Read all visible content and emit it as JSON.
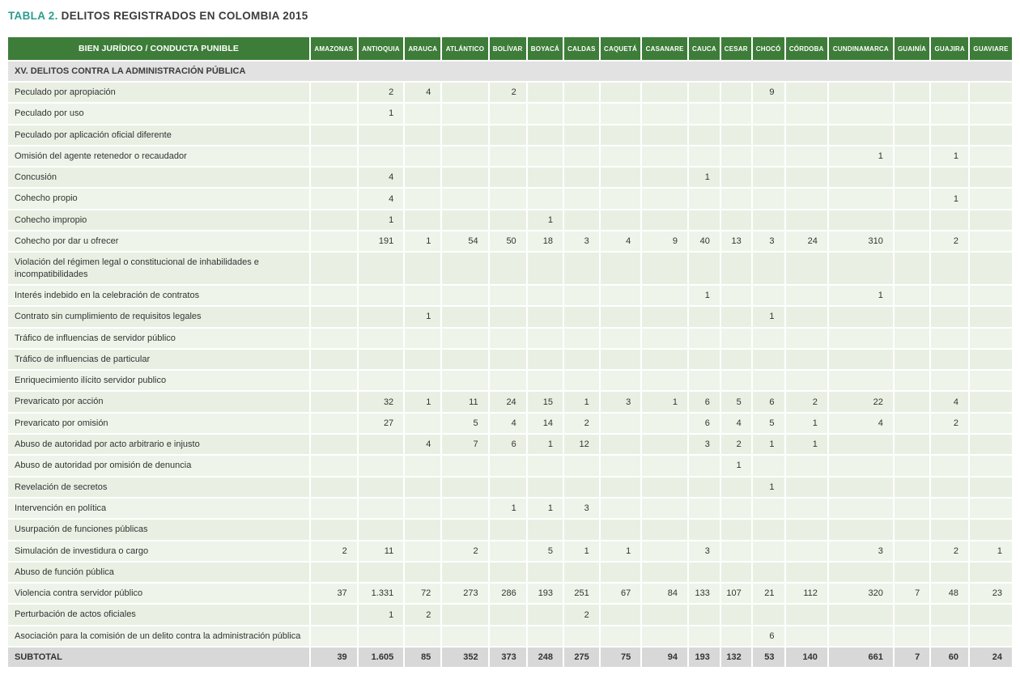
{
  "title": {
    "prefix": "TABLA 2.",
    "text": "DELITOS REGISTRADOS EN COLOMBIA 2015"
  },
  "colors": {
    "header_green": "#3e7d39",
    "title_teal": "#2a9d8f",
    "row_green": "#e9f0e3",
    "row_green_alt": "#eef4e9",
    "section_gray": "#e2e2e2",
    "subtotal_gray": "#d8d8d8"
  },
  "table": {
    "header_label": "BIEN JURÍDICO / CONDUCTA PUNIBLE",
    "columns": [
      "AMAZONAS",
      "ANTIOQUIA",
      "ARAUCA",
      "ATLÁNTICO",
      "BOLÍVAR",
      "BOYACÁ",
      "CALDAS",
      "CAQUETÁ",
      "CASANARE",
      "CAUCA",
      "CESAR",
      "CHOCÓ",
      "CÓRDOBA",
      "CUNDINAMARCA",
      "GUAINÍA",
      "GUAJIRA",
      "GUAVIARE"
    ],
    "section": "XV. DELITOS CONTRA LA ADMINISTRACIÓN PÚBLICA",
    "rows": [
      {
        "label": "Peculado por apropiación",
        "values": [
          "",
          "2",
          "4",
          "",
          "2",
          "",
          "",
          "",
          "",
          "",
          "",
          "9",
          "",
          "",
          "",
          "",
          ""
        ]
      },
      {
        "label": "Peculado por uso",
        "values": [
          "",
          "1",
          "",
          "",
          "",
          "",
          "",
          "",
          "",
          "",
          "",
          "",
          "",
          "",
          "",
          "",
          ""
        ]
      },
      {
        "label": "Peculado por aplicación oficial diferente",
        "values": [
          "",
          "",
          "",
          "",
          "",
          "",
          "",
          "",
          "",
          "",
          "",
          "",
          "",
          "",
          "",
          "",
          ""
        ]
      },
      {
        "label": "Omisión del agente retenedor o recaudador",
        "values": [
          "",
          "",
          "",
          "",
          "",
          "",
          "",
          "",
          "",
          "",
          "",
          "",
          "",
          "1",
          "",
          "1",
          ""
        ]
      },
      {
        "label": "Concusión",
        "values": [
          "",
          "4",
          "",
          "",
          "",
          "",
          "",
          "",
          "",
          "1",
          "",
          "",
          "",
          "",
          "",
          "",
          ""
        ]
      },
      {
        "label": "Cohecho propio",
        "values": [
          "",
          "4",
          "",
          "",
          "",
          "",
          "",
          "",
          "",
          "",
          "",
          "",
          "",
          "",
          "",
          "1",
          ""
        ]
      },
      {
        "label": "Cohecho impropio",
        "values": [
          "",
          "1",
          "",
          "",
          "",
          "1",
          "",
          "",
          "",
          "",
          "",
          "",
          "",
          "",
          "",
          "",
          ""
        ]
      },
      {
        "label": "Cohecho por dar u ofrecer",
        "values": [
          "",
          "191",
          "1",
          "54",
          "50",
          "18",
          "3",
          "4",
          "9",
          "40",
          "13",
          "3",
          "24",
          "310",
          "",
          "2",
          ""
        ]
      },
      {
        "label": "Violación del régimen legal o constitucional de inhabilidades e incompatibilidades",
        "values": [
          "",
          "",
          "",
          "",
          "",
          "",
          "",
          "",
          "",
          "",
          "",
          "",
          "",
          "",
          "",
          "",
          ""
        ]
      },
      {
        "label": "Interés indebido en la celebración de contratos",
        "values": [
          "",
          "",
          "",
          "",
          "",
          "",
          "",
          "",
          "",
          "1",
          "",
          "",
          "",
          "1",
          "",
          "",
          ""
        ]
      },
      {
        "label": "Contrato sin cumplimiento de requisitos legales",
        "values": [
          "",
          "",
          "1",
          "",
          "",
          "",
          "",
          "",
          "",
          "",
          "",
          "1",
          "",
          "",
          "",
          "",
          ""
        ]
      },
      {
        "label": "Tráfico de influencias de servidor público",
        "values": [
          "",
          "",
          "",
          "",
          "",
          "",
          "",
          "",
          "",
          "",
          "",
          "",
          "",
          "",
          "",
          "",
          ""
        ]
      },
      {
        "label": "Tráfico de influencias de particular",
        "values": [
          "",
          "",
          "",
          "",
          "",
          "",
          "",
          "",
          "",
          "",
          "",
          "",
          "",
          "",
          "",
          "",
          ""
        ]
      },
      {
        "label": "Enriquecimiento ilícito servidor publico",
        "values": [
          "",
          "",
          "",
          "",
          "",
          "",
          "",
          "",
          "",
          "",
          "",
          "",
          "",
          "",
          "",
          "",
          ""
        ]
      },
      {
        "label": "Prevaricato por acción",
        "values": [
          "",
          "32",
          "1",
          "11",
          "24",
          "15",
          "1",
          "3",
          "1",
          "6",
          "5",
          "6",
          "2",
          "22",
          "",
          "4",
          ""
        ]
      },
      {
        "label": "Prevaricato por omisión",
        "values": [
          "",
          "27",
          "",
          "5",
          "4",
          "14",
          "2",
          "",
          "",
          "6",
          "4",
          "5",
          "1",
          "4",
          "",
          "2",
          ""
        ]
      },
      {
        "label": "Abuso de autoridad por acto arbitrario e injusto",
        "values": [
          "",
          "",
          "4",
          "7",
          "6",
          "1",
          "12",
          "",
          "",
          "3",
          "2",
          "1",
          "1",
          "",
          "",
          "",
          ""
        ]
      },
      {
        "label": "Abuso de autoridad por omisión de denuncia",
        "values": [
          "",
          "",
          "",
          "",
          "",
          "",
          "",
          "",
          "",
          "",
          "1",
          "",
          "",
          "",
          "",
          "",
          ""
        ]
      },
      {
        "label": "Revelación de secretos",
        "values": [
          "",
          "",
          "",
          "",
          "",
          "",
          "",
          "",
          "",
          "",
          "",
          "1",
          "",
          "",
          "",
          "",
          ""
        ]
      },
      {
        "label": "Intervención en política",
        "values": [
          "",
          "",
          "",
          "",
          "1",
          "1",
          "3",
          "",
          "",
          "",
          "",
          "",
          "",
          "",
          "",
          "",
          ""
        ]
      },
      {
        "label": "Usurpación de funciones públicas",
        "values": [
          "",
          "",
          "",
          "",
          "",
          "",
          "",
          "",
          "",
          "",
          "",
          "",
          "",
          "",
          "",
          "",
          ""
        ]
      },
      {
        "label": "Simulación de investidura o cargo",
        "values": [
          "2",
          "11",
          "",
          "2",
          "",
          "5",
          "1",
          "1",
          "",
          "3",
          "",
          "",
          "",
          "3",
          "",
          "2",
          "1"
        ]
      },
      {
        "label": "Abuso de función pública",
        "values": [
          "",
          "",
          "",
          "",
          "",
          "",
          "",
          "",
          "",
          "",
          "",
          "",
          "",
          "",
          "",
          "",
          ""
        ]
      },
      {
        "label": "Violencia contra servidor público",
        "values": [
          "37",
          "1.331",
          "72",
          "273",
          "286",
          "193",
          "251",
          "67",
          "84",
          "133",
          "107",
          "21",
          "112",
          "320",
          "7",
          "48",
          "23"
        ]
      },
      {
        "label": "Perturbación de actos oficiales",
        "values": [
          "",
          "1",
          "2",
          "",
          "",
          "",
          "2",
          "",
          "",
          "",
          "",
          "",
          "",
          "",
          "",
          "",
          ""
        ]
      },
      {
        "label": "Asociación para la comisión de un delito contra la administración pública",
        "values": [
          "",
          "",
          "",
          "",
          "",
          "",
          "",
          "",
          "",
          "",
          "",
          "6",
          "",
          "",
          "",
          "",
          ""
        ]
      }
    ],
    "subtotal": {
      "label": "SUBTOTAL",
      "values": [
        "39",
        "1.605",
        "85",
        "352",
        "373",
        "248",
        "275",
        "75",
        "94",
        "193",
        "132",
        "53",
        "140",
        "661",
        "7",
        "60",
        "24"
      ]
    }
  }
}
